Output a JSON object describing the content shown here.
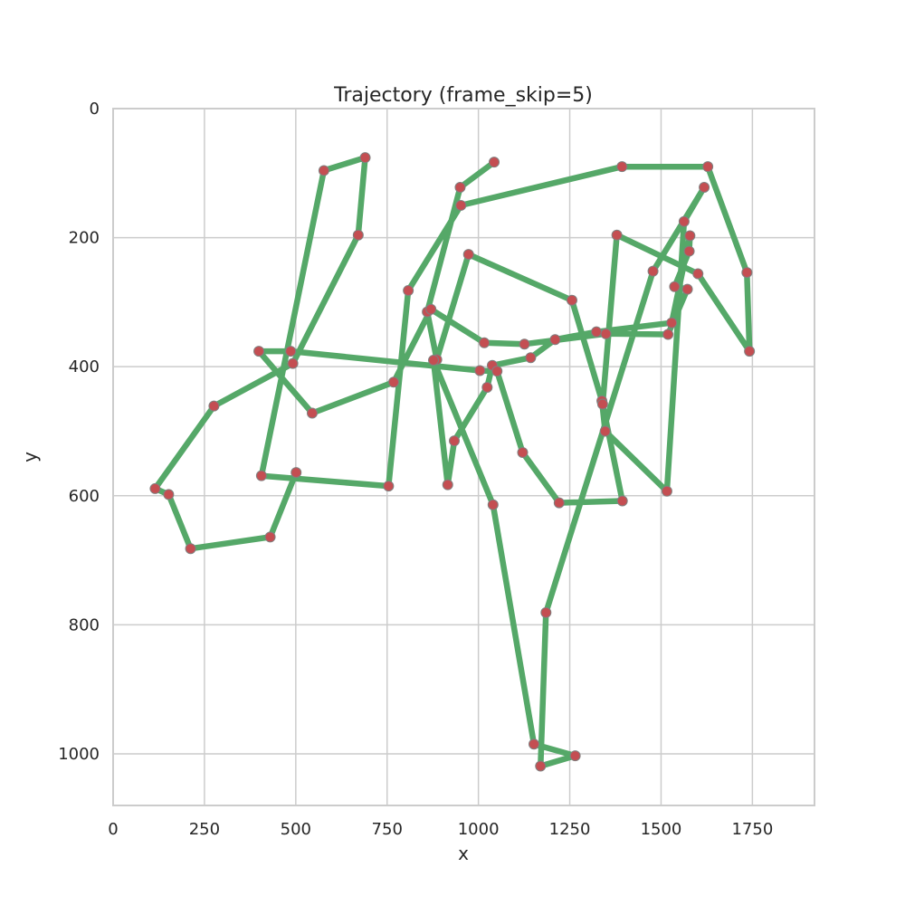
{
  "chart_data": {
    "type": "line",
    "title": "Trajectory (frame_skip=5)",
    "xlabel": "x",
    "ylabel": "y",
    "xlim": [
      0,
      1920
    ],
    "ylim": [
      1080,
      0
    ],
    "y_inverted": true,
    "grid": true,
    "x_ticks": [
      0,
      250,
      500,
      750,
      1000,
      1250,
      1500,
      1750
    ],
    "y_ticks": [
      0,
      200,
      400,
      600,
      800,
      1000
    ],
    "line_color": "#55a868",
    "marker_color": "#c44e52",
    "marker_edge_color": "#808080",
    "series": [
      {
        "x": [
          1043,
          950,
          860,
          886,
          973,
          1256,
          1338,
          1347,
          1516,
          1563,
          1618,
          1478,
          1185,
          1170,
          1265,
          1152,
          1040,
          877,
          916,
          934,
          1024,
          1038,
          1143,
          1210,
          1323,
          1529,
          1579,
          1577,
          1537,
          1572,
          1519,
          1349,
          1126,
          1016,
          870,
          768,
          545,
          399,
          486,
          1004,
          1051,
          1121,
          1221,
          1394,
          1340,
          1379,
          1601,
          1742,
          1735,
          1628,
          1393,
          952,
          808,
          754,
          406,
          577,
          690,
          671,
          492,
          276,
          115,
          152,
          212,
          430,
          501
        ],
        "y": [
          83,
          122,
          315,
          389,
          226,
          297,
          453,
          500,
          593,
          175,
          122,
          252,
          781,
          1019,
          1003,
          985,
          614,
          390,
          583,
          515,
          432,
          398,
          386,
          358,
          346,
          332,
          197,
          221,
          276,
          280,
          350,
          349,
          365,
          363,
          311,
          424,
          472,
          376,
          376,
          406,
          407,
          533,
          611,
          608,
          458,
          196,
          256,
          376,
          254,
          90,
          90,
          150,
          282,
          585,
          569,
          96,
          76,
          196,
          395,
          461,
          589,
          598,
          682,
          664,
          564
        ]
      }
    ]
  }
}
